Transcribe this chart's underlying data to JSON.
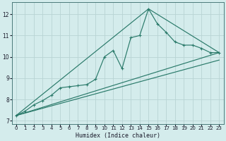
{
  "xlabel": "Humidex (Indice chaleur)",
  "background_color": "#d4ecec",
  "grid_color": "#b8d4d4",
  "line_color": "#2a7a6a",
  "xlim": [
    -0.5,
    23.5
  ],
  "ylim": [
    6.85,
    12.55
  ],
  "yticks": [
    7,
    8,
    9,
    10,
    11,
    12
  ],
  "xticks": [
    0,
    1,
    2,
    3,
    4,
    5,
    6,
    7,
    8,
    9,
    10,
    11,
    12,
    13,
    14,
    15,
    16,
    17,
    18,
    19,
    20,
    21,
    22,
    23
  ],
  "main_x": [
    0,
    1,
    2,
    3,
    4,
    5,
    6,
    7,
    8,
    9,
    10,
    11,
    12,
    13,
    14,
    15,
    16,
    17,
    18,
    19,
    20,
    21,
    22,
    23
  ],
  "main_y": [
    7.25,
    7.45,
    7.75,
    7.95,
    8.2,
    8.55,
    8.6,
    8.65,
    8.7,
    8.95,
    10.0,
    10.3,
    9.45,
    10.9,
    11.0,
    12.25,
    11.55,
    11.15,
    10.7,
    10.55,
    10.55,
    10.4,
    10.2,
    10.2
  ],
  "line1_x": [
    0,
    23
  ],
  "line1_y": [
    7.25,
    10.2
  ],
  "line2_x": [
    0,
    23
  ],
  "line2_y": [
    7.25,
    10.2
  ],
  "line3_x": [
    0,
    15,
    23
  ],
  "line3_y": [
    7.25,
    12.25,
    10.2
  ],
  "line4_x": [
    0,
    23
  ],
  "line4_y": [
    7.25,
    9.85
  ]
}
